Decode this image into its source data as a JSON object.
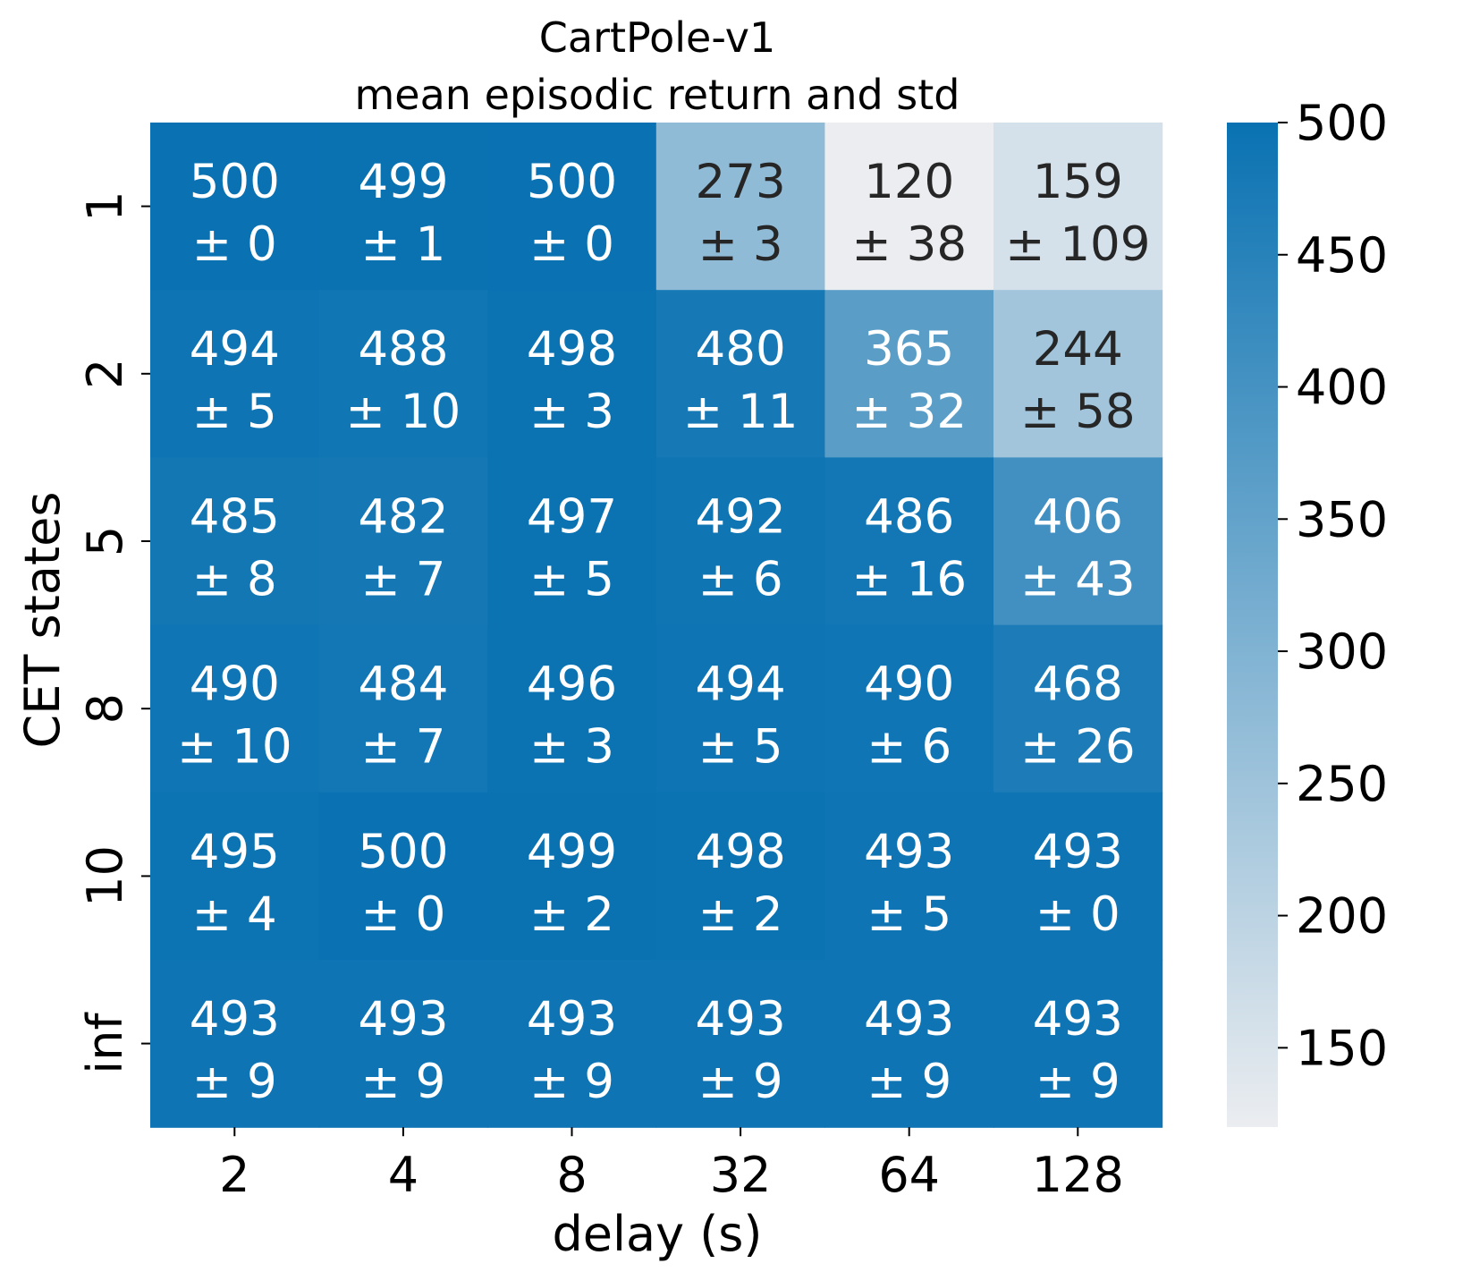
{
  "chart_data": {
    "type": "heatmap",
    "title": [
      "CartPole-v1",
      "mean episodic return and std"
    ],
    "xlabel": "delay (s)",
    "ylabel": "CET states",
    "x_categories": [
      "2",
      "4",
      "8",
      "32",
      "64",
      "128"
    ],
    "y_categories": [
      "1",
      "2",
      "5",
      "8",
      "10",
      "inf"
    ],
    "values": [
      [
        500,
        499,
        500,
        273,
        120,
        159
      ],
      [
        494,
        488,
        498,
        480,
        365,
        244
      ],
      [
        485,
        482,
        497,
        492,
        486,
        406
      ],
      [
        490,
        484,
        496,
        494,
        490,
        468
      ],
      [
        495,
        500,
        499,
        498,
        493,
        493
      ],
      [
        493,
        493,
        493,
        493,
        493,
        493
      ]
    ],
    "std": [
      [
        0,
        1,
        0,
        3,
        38,
        109
      ],
      [
        5,
        10,
        3,
        11,
        32,
        58
      ],
      [
        8,
        7,
        5,
        6,
        16,
        43
      ],
      [
        10,
        7,
        3,
        5,
        6,
        26
      ],
      [
        4,
        0,
        2,
        2,
        5,
        0
      ],
      [
        9,
        9,
        9,
        9,
        9,
        9
      ]
    ],
    "colorbar": {
      "min": 120,
      "max": 500,
      "ticks": [
        150,
        200,
        250,
        300,
        350,
        400,
        450,
        500
      ],
      "low_color": "#ebedf0",
      "high_color": "#0a72b2"
    },
    "annotation_dark_color": "#262626",
    "annotation_light_color": "#ffffff"
  }
}
